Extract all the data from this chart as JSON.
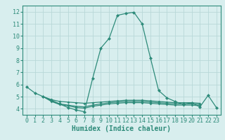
{
  "main_x": [
    0,
    1,
    2,
    3,
    4,
    5,
    6,
    7,
    8,
    9,
    10,
    11,
    12,
    13,
    14,
    15,
    16,
    17,
    18,
    19,
    20,
    21,
    22,
    23
  ],
  "main_y": [
    5.8,
    5.3,
    5.0,
    4.7,
    4.4,
    4.1,
    3.9,
    3.75,
    6.5,
    9.0,
    9.8,
    11.7,
    11.85,
    11.95,
    11.0,
    8.2,
    5.5,
    4.9,
    4.6,
    4.35,
    4.5,
    4.15,
    5.1,
    4.1
  ],
  "flat1_x": [
    2,
    3,
    4,
    5,
    6,
    7,
    8,
    9,
    10,
    11,
    12,
    13,
    14,
    15,
    16,
    17,
    18,
    19,
    20,
    21
  ],
  "flat1_y": [
    5.0,
    4.75,
    4.6,
    4.55,
    4.5,
    4.45,
    4.5,
    4.55,
    4.6,
    4.65,
    4.7,
    4.7,
    4.7,
    4.65,
    4.6,
    4.55,
    4.5,
    4.5,
    4.5,
    4.45
  ],
  "flat2_x": [
    2,
    3,
    4,
    5,
    6,
    7,
    8,
    9,
    10,
    11,
    12,
    13,
    14,
    15,
    16,
    17,
    18,
    19,
    20,
    21
  ],
  "flat2_y": [
    5.0,
    4.65,
    4.4,
    4.3,
    4.2,
    4.15,
    4.3,
    4.4,
    4.5,
    4.55,
    4.6,
    4.6,
    4.6,
    4.55,
    4.5,
    4.45,
    4.4,
    4.4,
    4.4,
    4.35
  ],
  "flat3_x": [
    2,
    3,
    4,
    5,
    6,
    7,
    8,
    9,
    10,
    11,
    12,
    13,
    14,
    15,
    16,
    17,
    18,
    19,
    20,
    21
  ],
  "flat3_y": [
    5.0,
    4.6,
    4.35,
    4.25,
    4.1,
    4.05,
    4.2,
    4.3,
    4.4,
    4.45,
    4.5,
    4.5,
    4.5,
    4.45,
    4.4,
    4.35,
    4.3,
    4.3,
    4.3,
    4.25
  ],
  "line_color": "#2e8b7a",
  "bg_color": "#d8eeee",
  "grid_color": "#b8d8d8",
  "xlabel": "Humidex (Indice chaleur)",
  "ylim": [
    3.5,
    12.5
  ],
  "xlim": [
    -0.5,
    23.5
  ],
  "yticks": [
    4,
    5,
    6,
    7,
    8,
    9,
    10,
    11,
    12
  ],
  "xticks": [
    0,
    1,
    2,
    3,
    4,
    5,
    6,
    7,
    8,
    9,
    10,
    11,
    12,
    13,
    14,
    15,
    16,
    17,
    18,
    19,
    20,
    21,
    22,
    23
  ],
  "xlabel_fontsize": 7,
  "tick_fontsize": 6,
  "marker_size": 2.5,
  "linewidth": 0.9
}
